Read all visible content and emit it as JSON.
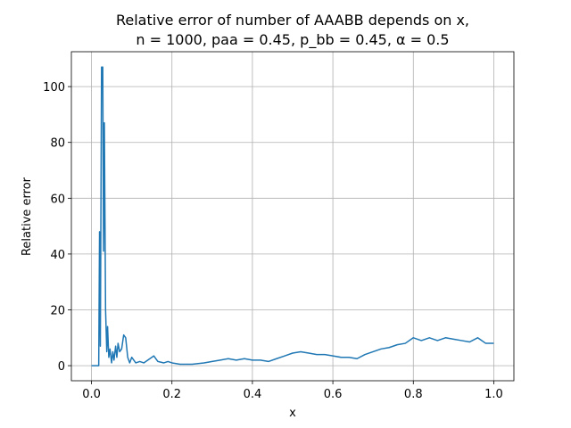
{
  "chart_data": {
    "type": "line",
    "title": [
      "Relative error of number of AAABB depends on x,",
      "n = 1000, paa = 0.45, p_bb = 0.45, α = 0.5"
    ],
    "x_label": "x",
    "y_label": "Relative error",
    "x": [
      0,
      0.01,
      0.018,
      0.02,
      0.022,
      0.025,
      0.028,
      0.03,
      0.032,
      0.035,
      0.038,
      0.04,
      0.043,
      0.046,
      0.05,
      0.053,
      0.056,
      0.06,
      0.063,
      0.066,
      0.07,
      0.075,
      0.08,
      0.085,
      0.09,
      0.095,
      0.1,
      0.11,
      0.12,
      0.13,
      0.14,
      0.155,
      0.165,
      0.18,
      0.19,
      0.2,
      0.22,
      0.25,
      0.28,
      0.3,
      0.32,
      0.34,
      0.36,
      0.38,
      0.4,
      0.42,
      0.44,
      0.46,
      0.48,
      0.5,
      0.52,
      0.54,
      0.56,
      0.58,
      0.6,
      0.62,
      0.64,
      0.66,
      0.68,
      0.7,
      0.72,
      0.74,
      0.76,
      0.78,
      0.8,
      0.82,
      0.84,
      0.86,
      0.88,
      0.9,
      0.92,
      0.94,
      0.96,
      0.98,
      1.0
    ],
    "series": [
      {
        "color": "#1f77b4",
        "values": [
          0,
          0,
          0,
          48,
          7,
          107,
          107,
          41,
          87,
          20,
          5,
          14,
          3,
          6,
          1,
          5,
          2,
          7,
          3,
          8,
          5,
          6,
          11,
          10,
          3,
          1,
          3,
          1,
          1.5,
          1,
          2,
          3.5,
          1.5,
          1,
          1.5,
          1,
          0.5,
          0.5,
          1,
          1.5,
          2,
          2.5,
          2,
          2.5,
          2,
          2,
          1.5,
          2.5,
          3.5,
          4.5,
          5,
          4.5,
          4,
          4,
          3.5,
          3,
          3,
          2.5,
          4,
          5,
          6,
          6.5,
          7.5,
          8,
          10,
          9,
          10,
          9,
          10,
          9.5,
          9,
          8.5,
          10,
          8,
          8
        ]
      }
    ],
    "xlim": [
      -0.05,
      1.05
    ],
    "ylim": [
      -5.4,
      112.5
    ],
    "xticks": [
      {
        "value": 0,
        "label": "0.0"
      },
      0.2,
      0.4,
      0.6,
      0.8,
      {
        "value": 1,
        "label": "1.0"
      }
    ],
    "yticks": [
      0,
      20,
      40,
      60,
      80,
      100
    ],
    "grid": true
  }
}
